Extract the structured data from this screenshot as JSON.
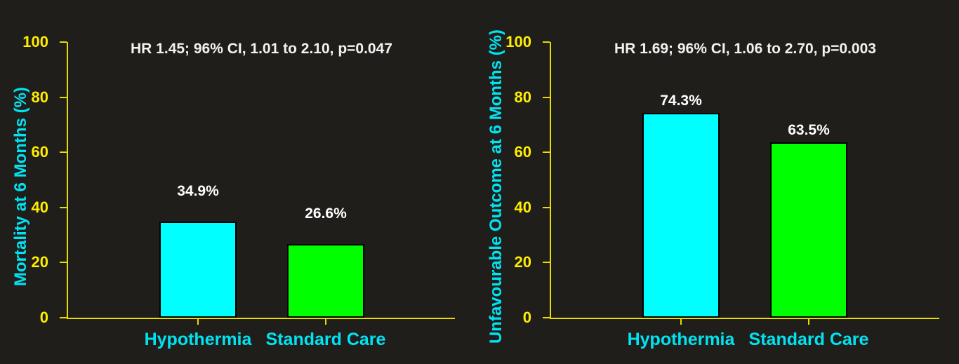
{
  "colors": {
    "background": "#1f1e1b",
    "axis_line": "#e8dc00",
    "tick_label": "#ffee00",
    "category_label": "#00e4f2",
    "axis_title": "#00e4f2",
    "value_label": "#ffffff",
    "annotation": "#f2f2f2",
    "bar_cyan": "#00ffff",
    "bar_green": "#00ff00",
    "bar_border": "#000000"
  },
  "chart_data": [
    {
      "type": "bar",
      "title": "",
      "annotation": "HR 1.45; 96% CI, 1.01 to 2.10, p=0.047",
      "ylabel": "Mortality at 6 Months (%)",
      "xlabel": "",
      "categories": [
        "Hypothermia",
        "Standard Care"
      ],
      "values": [
        34.9,
        26.6
      ],
      "value_labels": [
        "34.9%",
        "26.6%"
      ],
      "bar_colors": [
        "#00ffff",
        "#00ff00"
      ],
      "ylim": [
        0,
        100
      ],
      "yticks": [
        0,
        20,
        40,
        60,
        80,
        100
      ],
      "grid": false,
      "legend": null
    },
    {
      "type": "bar",
      "title": "",
      "annotation": "HR 1.69; 96% CI, 1.06 to 2.70, p=0.003",
      "ylabel": "Unfavourable Outcome at 6 Months (%)",
      "xlabel": "",
      "categories": [
        "Hypothermia",
        "Standard Care"
      ],
      "values": [
        74.3,
        63.5
      ],
      "value_labels": [
        "74.3%",
        "63.5%"
      ],
      "bar_colors": [
        "#00ffff",
        "#00ff00"
      ],
      "ylim": [
        0,
        100
      ],
      "yticks": [
        0,
        20,
        40,
        60,
        80,
        100
      ],
      "grid": false,
      "legend": null
    }
  ]
}
